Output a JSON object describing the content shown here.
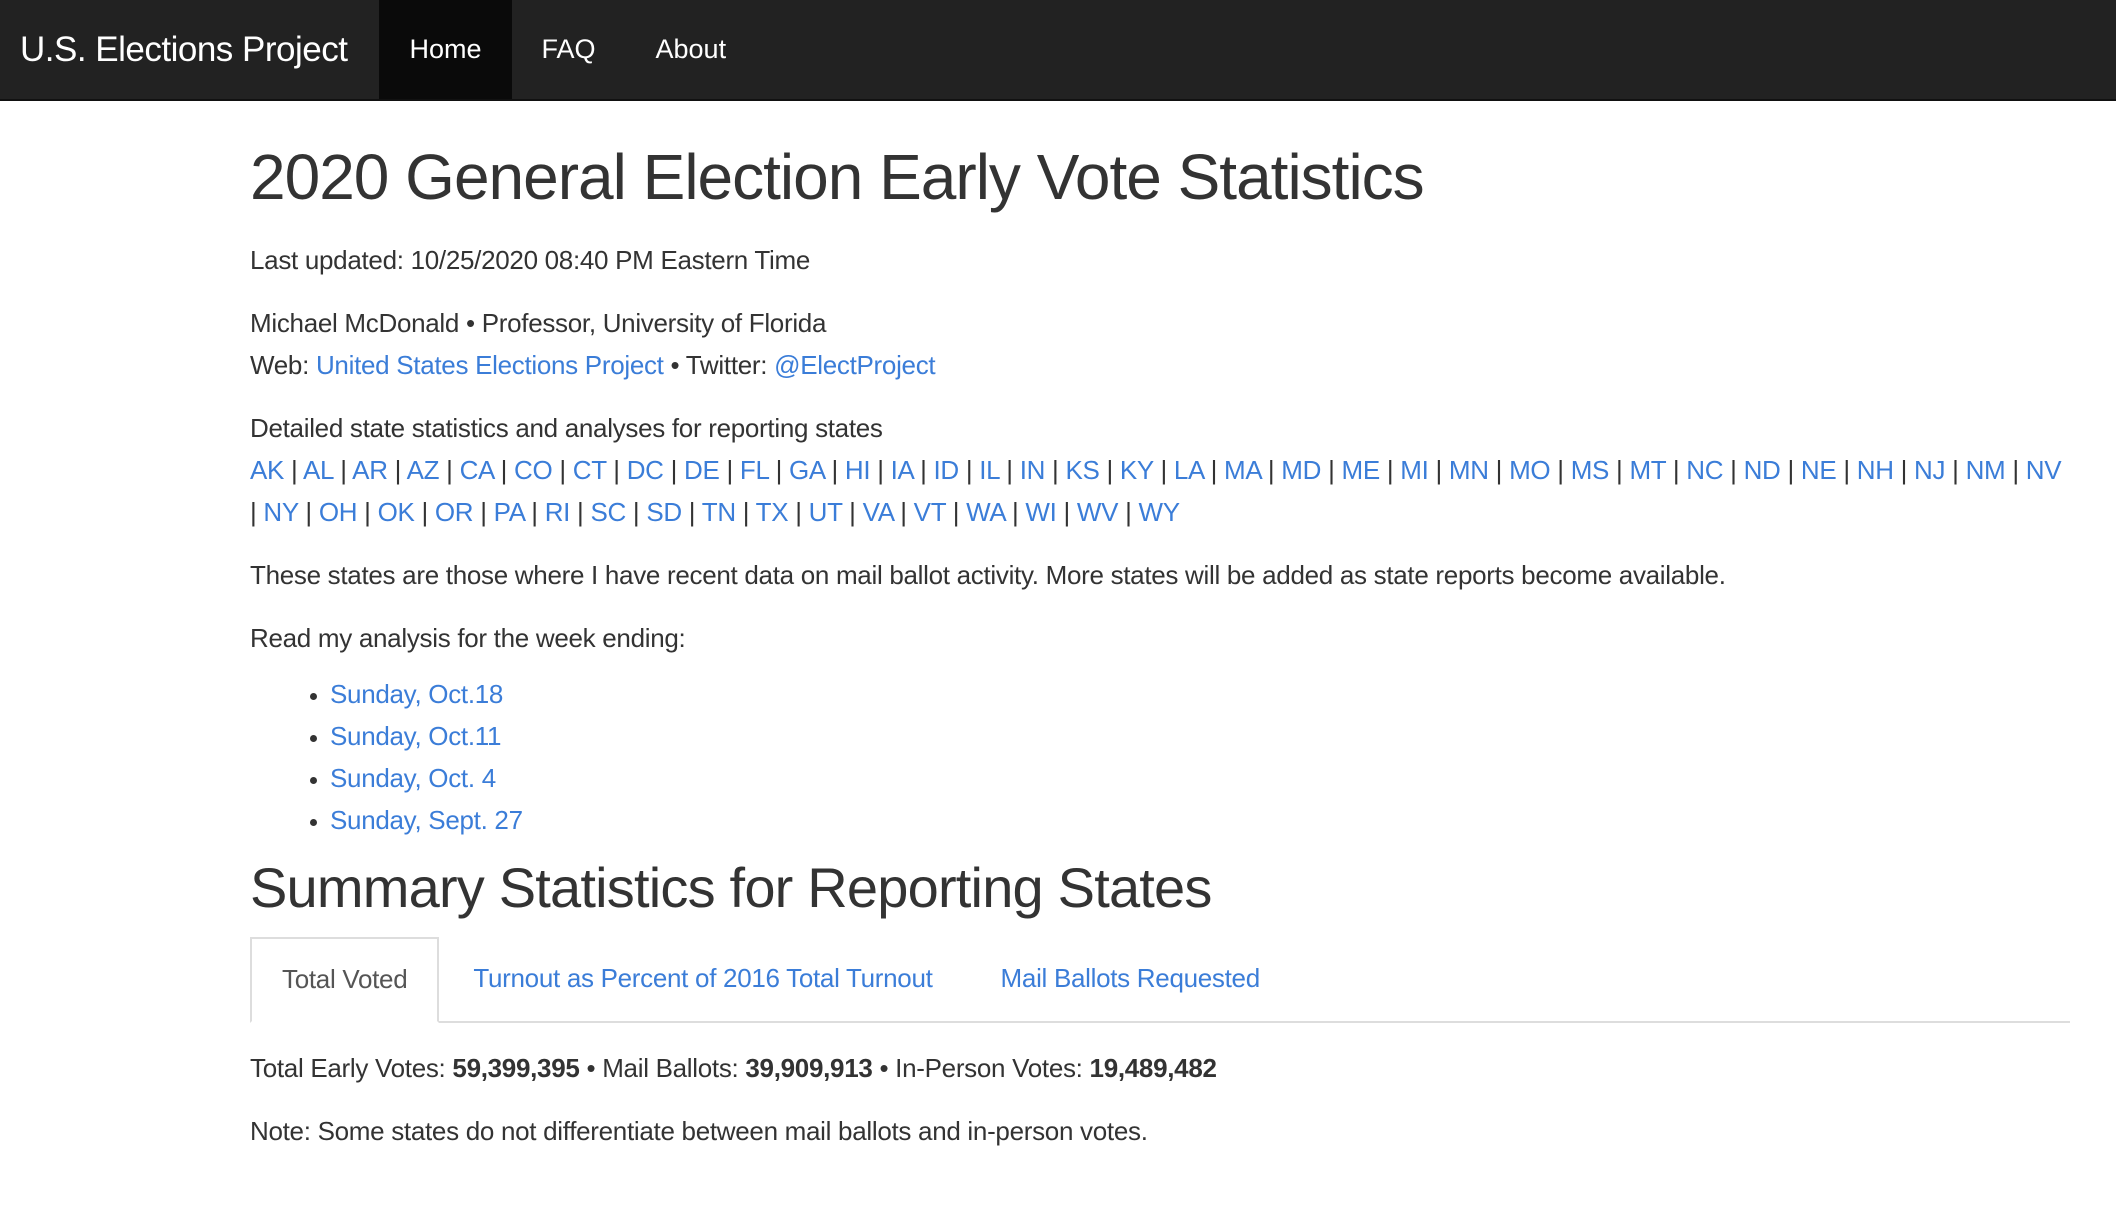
{
  "nav": {
    "brand": "U.S. Elections Project",
    "items": [
      {
        "label": "Home",
        "active": true
      },
      {
        "label": "FAQ",
        "active": false
      },
      {
        "label": "About",
        "active": false
      }
    ]
  },
  "page": {
    "title": "2020 General Election Early Vote Statistics",
    "last_updated": "Last updated: 10/25/2020 08:40 PM Eastern Time",
    "author_line": "Michael McDonald • Professor, University of Florida",
    "web_label": "Web: ",
    "web_link": "United States Elections Project",
    "twitter_label": " • Twitter: ",
    "twitter_link": "@ElectProject",
    "states_intro": "Detailed state statistics and analyses for reporting states",
    "states": [
      "AK",
      "AL",
      "AR",
      "AZ",
      "CA",
      "CO",
      "CT",
      "DC",
      "DE",
      "FL",
      "GA",
      "HI",
      "IA",
      "ID",
      "IL",
      "IN",
      "KS",
      "KY",
      "LA",
      "MA",
      "MD",
      "ME",
      "MI",
      "MN",
      "MO",
      "MS",
      "MT",
      "NC",
      "ND",
      "NE",
      "NH",
      "NJ",
      "NM",
      "NV",
      "NY",
      "OH",
      "OK",
      "OR",
      "PA",
      "RI",
      "SC",
      "SD",
      "TN",
      "TX",
      "UT",
      "VA",
      "VT",
      "WA",
      "WI",
      "WV",
      "WY"
    ],
    "states_note": "These states are those where I have recent data on mail ballot activity. More states will be added as state reports become available.",
    "analysis_intro": "Read my analysis for the week ending:",
    "analysis_links": [
      "Sunday, Oct.18",
      "Sunday, Oct.11",
      "Sunday, Oct. 4",
      "Sunday, Sept. 27"
    ],
    "summary_heading": "Summary Statistics for Reporting States",
    "tabs": [
      {
        "label": "Total Voted",
        "active": true
      },
      {
        "label": "Turnout as Percent of 2016 Total Turnout",
        "active": false
      },
      {
        "label": "Mail Ballots Requested",
        "active": false
      }
    ],
    "totals": {
      "early_label": "Total Early Votes: ",
      "early_value": "59,399,395",
      "mail_label": " • Mail Ballots: ",
      "mail_value": "39,909,913",
      "inperson_label": " • In-Person Votes: ",
      "inperson_value": "19,489,482"
    },
    "note": "Note: Some states do not differentiate between mail ballots and in-person votes."
  },
  "colors": {
    "navbar": "#222222",
    "link": "#3b7dd8",
    "text": "#333333"
  }
}
